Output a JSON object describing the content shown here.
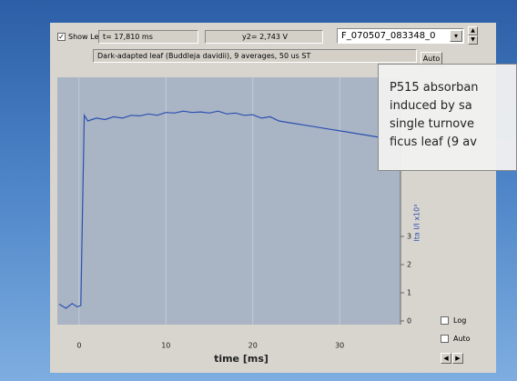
{
  "toolbar": {
    "show_level": "Show Level",
    "t_readout": "t= 17,810 ms",
    "y2_readout": "y2= 2,743 V",
    "file": "F_070507_083348_0"
  },
  "info": {
    "description": "Dark-adapted leaf (Buddleja davidii), 9 averages, 50 us ST",
    "auto_button": "Auto"
  },
  "controls": {
    "log": "Log",
    "auto": "Auto"
  },
  "overlay": {
    "lines": [
      "P515 absorban",
      "induced by sa",
      "single turnove",
      "ficus leaf (9 av"
    ]
  },
  "chart_data": {
    "type": "line",
    "x_label": "time [ms]",
    "y_label": "lta I/I x10³",
    "x": [
      -2.3,
      -1.5,
      -0.8,
      -0.2,
      0.2,
      0.4,
      0.6,
      1,
      2,
      3,
      4,
      5,
      6,
      7,
      8,
      9,
      10,
      11,
      12,
      13,
      14,
      15,
      16,
      17,
      18,
      19,
      20,
      21,
      22,
      23,
      24,
      25,
      26,
      27,
      28,
      29,
      30,
      31,
      32,
      33,
      34,
      35
    ],
    "values": [
      0.6,
      0.45,
      0.62,
      0.5,
      0.55,
      4.0,
      7.3,
      7.1,
      7.2,
      7.15,
      7.25,
      7.2,
      7.3,
      7.28,
      7.35,
      7.3,
      7.4,
      7.38,
      7.45,
      7.4,
      7.42,
      7.38,
      7.45,
      7.35,
      7.38,
      7.3,
      7.32,
      7.2,
      7.25,
      7.1,
      7.05,
      7.0,
      6.95,
      6.9,
      6.85,
      6.8,
      6.75,
      6.7,
      6.65,
      6.6,
      6.55,
      6.5
    ],
    "color": "#2c4fb2",
    "xlim": [
      -2.5,
      37
    ],
    "ylim": [
      -0.13,
      8.65
    ],
    "xticks": [
      0,
      10,
      20,
      30
    ],
    "yticks": [
      0,
      1,
      2,
      3
    ],
    "grid": true
  }
}
